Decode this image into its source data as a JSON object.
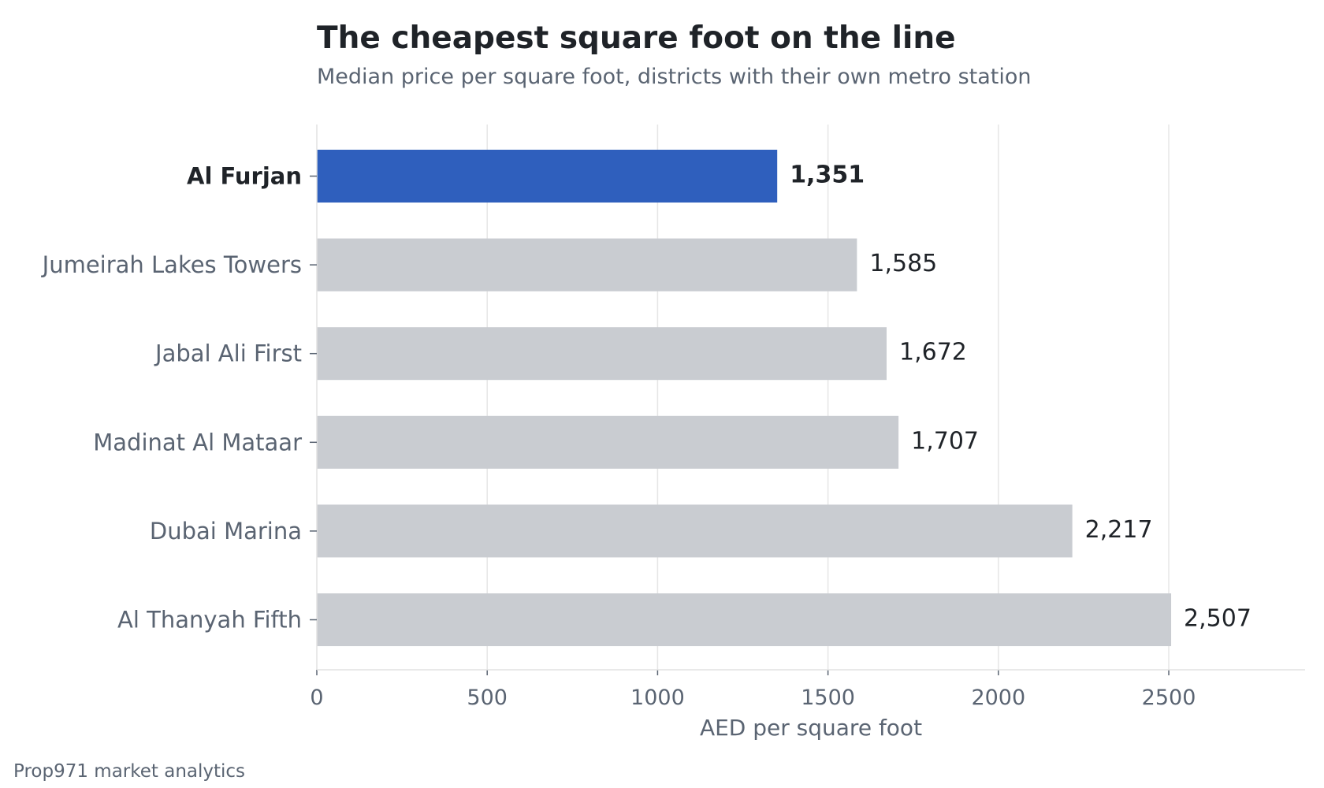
{
  "title": "The cheapest square foot on the line",
  "subtitle": "Median price per square foot, districts with their own metro station",
  "source": "Prop971 market analytics",
  "colors": {
    "highlight": "#2f5fbd",
    "bar": "#c9ccd1",
    "grid": "#e6e6e6",
    "label": "#5a6472",
    "value": "#1f2328"
  },
  "chart_data": {
    "type": "bar",
    "orientation": "horizontal",
    "categories": [
      "Al Furjan",
      "Jumeirah Lakes Towers",
      "Jabal Ali First",
      "Madinat Al Mataar",
      "Dubai Marina",
      "Al Thanyah Fifth"
    ],
    "values": [
      1351,
      1585,
      1672,
      1707,
      2217,
      2507
    ],
    "value_labels": [
      "1,351",
      "1,585",
      "1,672",
      "1,707",
      "2,217",
      "2,507"
    ],
    "highlight": "Al Furjan",
    "xlabel": "AED per square foot",
    "ylabel": "",
    "xlim": [
      0,
      2900
    ],
    "xticks": [
      0,
      500,
      1000,
      1500,
      2000,
      2500
    ],
    "grid": "vertical"
  }
}
